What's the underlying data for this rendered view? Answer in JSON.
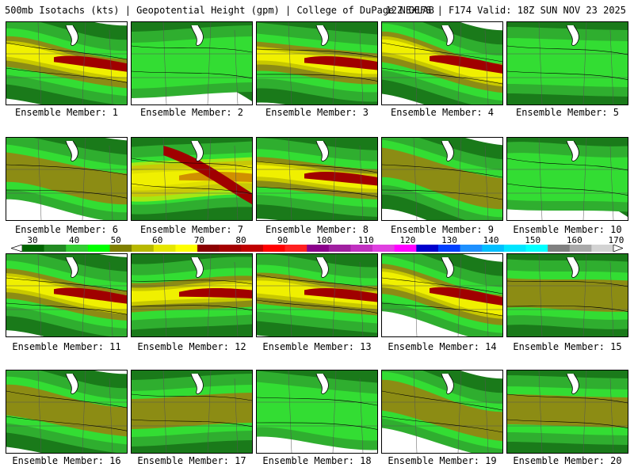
{
  "header": {
    "left": "500mb Isotachs (kts) | Geopotential Height (gpm) | College of DuPage NEXLAB",
    "right": "12Z GEFS | F174 Valid: 18Z SUN NOV 23 2025"
  },
  "colorbar": {
    "labels": [
      "30",
      "40",
      "50",
      "60",
      "70",
      "80",
      "90",
      "100",
      "110",
      "120",
      "130",
      "140",
      "150",
      "160",
      "170"
    ],
    "colors": [
      "#006400",
      "#228b22",
      "#32cd32",
      "#00ff00",
      "#808000",
      "#b8b800",
      "#e6e600",
      "#ffff00",
      "#8b0000",
      "#a50000",
      "#c00000",
      "#ff0000",
      "#ff2020",
      "#8b008b",
      "#a020a0",
      "#c030c0",
      "#e040e0",
      "#ff00ff",
      "#0000cd",
      "#0040ff",
      "#1e90ff",
      "#00bfff",
      "#00e5ff",
      "#00ffff",
      "#808080",
      "#a9a9a9",
      "#d3d3d3"
    ]
  },
  "panels": [
    {
      "member": "Ensemble Member: 1",
      "intensity": 3
    },
    {
      "member": "Ensemble Member: 2",
      "intensity": 1
    },
    {
      "member": "Ensemble Member: 3",
      "intensity": 3
    },
    {
      "member": "Ensemble Member: 4",
      "intensity": 3
    },
    {
      "member": "Ensemble Member: 5",
      "intensity": 1
    },
    {
      "member": "Ensemble Member: 6",
      "intensity": 2
    },
    {
      "member": "Ensemble Member: 7",
      "intensity": 4
    },
    {
      "member": "Ensemble Member: 8",
      "intensity": 3
    },
    {
      "member": "Ensemble Member: 9",
      "intensity": 2
    },
    {
      "member": "Ensemble Member: 10",
      "intensity": 1
    },
    {
      "member": "Ensemble Member: 11",
      "intensity": 3
    },
    {
      "member": "Ensemble Member: 12",
      "intensity": 3
    },
    {
      "member": "Ensemble Member: 13",
      "intensity": 3
    },
    {
      "member": "Ensemble Member: 14",
      "intensity": 3
    },
    {
      "member": "Ensemble Member: 15",
      "intensity": 2
    },
    {
      "member": "Ensemble Member: 16",
      "intensity": 2
    },
    {
      "member": "Ensemble Member: 17",
      "intensity": 2
    },
    {
      "member": "Ensemble Member: 18",
      "intensity": 1
    },
    {
      "member": "Ensemble Member: 19",
      "intensity": 2
    },
    {
      "member": "Ensemble Member: 20",
      "intensity": 2
    }
  ]
}
